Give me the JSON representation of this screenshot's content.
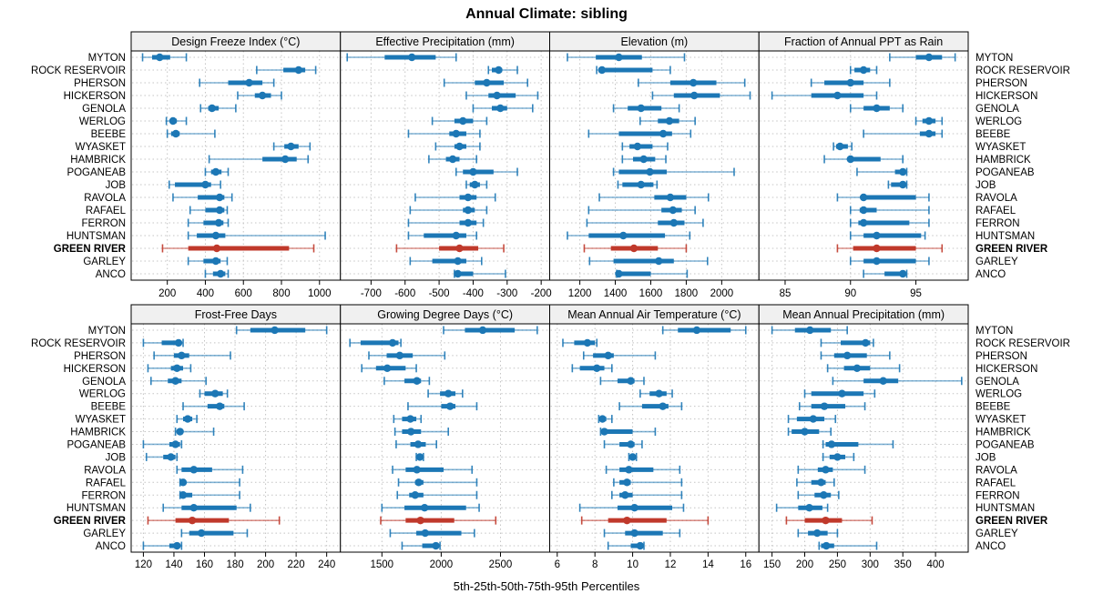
{
  "title": "Annual Climate: sibling",
  "xlabel": "5th-25th-50th-75th-95th Percentiles",
  "highlight_site": "GREEN RIVER",
  "colors": {
    "series": "#1C77B5",
    "highlight": "#C0392B",
    "strip_bg": "#F0F0F0",
    "grid": "#C4C4C4",
    "border": "#000000"
  },
  "sites": [
    "MYTON",
    "ROCK RESERVOIR",
    "PHERSON",
    "HICKERSON",
    "GENOLA",
    "WERLOG",
    "BEEBE",
    "WYASKET",
    "HAMBRICK",
    "POGANEAB",
    "JOB",
    "RAVOLA",
    "RAFAEL",
    "FERRON",
    "HUNTSMAN",
    "GREEN RIVER",
    "GARLEY",
    "ANCO"
  ],
  "chart_data": {
    "type": "dotplot",
    "subtype": "percentile-whisker-trellis",
    "layout": "2 rows x 4 columns, shared site axis, grid on (dotted)",
    "percentiles": [
      "5th",
      "25th",
      "50th",
      "75th",
      "95th"
    ],
    "panels": [
      {
        "title": "Design Freeze Index (°C)",
        "ticks": [
          200,
          400,
          600,
          800,
          1000
        ],
        "range": [
          10,
          1110
        ],
        "values": [
          [
            70,
            120,
            160,
            215,
            300
          ],
          [
            670,
            810,
            890,
            925,
            980
          ],
          [
            370,
            520,
            630,
            700,
            760
          ],
          [
            570,
            660,
            700,
            745,
            800
          ],
          [
            375,
            415,
            435,
            470,
            560
          ],
          [
            195,
            215,
            230,
            250,
            300
          ],
          [
            200,
            220,
            245,
            265,
            450
          ],
          [
            760,
            815,
            850,
            890,
            950
          ],
          [
            420,
            700,
            820,
            880,
            940
          ],
          [
            400,
            430,
            455,
            485,
            520
          ],
          [
            210,
            240,
            400,
            430,
            480
          ],
          [
            230,
            360,
            475,
            500,
            540
          ],
          [
            320,
            400,
            475,
            500,
            515
          ],
          [
            310,
            390,
            470,
            495,
            520
          ],
          [
            310,
            355,
            455,
            505,
            1030
          ],
          [
            175,
            310,
            460,
            840,
            970
          ],
          [
            310,
            390,
            455,
            480,
            515
          ],
          [
            400,
            440,
            480,
            505,
            520
          ]
        ]
      },
      {
        "title": "Effective Precipitation (mm)",
        "ticks": [
          -700,
          -600,
          -500,
          -400,
          -300,
          -200
        ],
        "range": [
          -790,
          -175
        ],
        "values": [
          [
            -770,
            -660,
            -580,
            -510,
            -450
          ],
          [
            -355,
            -345,
            -325,
            -315,
            -270
          ],
          [
            -485,
            -395,
            -360,
            -310,
            -240
          ],
          [
            -420,
            -355,
            -330,
            -275,
            -210
          ],
          [
            -400,
            -345,
            -320,
            -300,
            -225
          ],
          [
            -520,
            -455,
            -430,
            -400,
            -360
          ],
          [
            -590,
            -470,
            -450,
            -420,
            -380
          ],
          [
            -510,
            -455,
            -440,
            -420,
            -380
          ],
          [
            -530,
            -480,
            -460,
            -440,
            -390
          ],
          [
            -450,
            -430,
            -400,
            -340,
            -270
          ],
          [
            -420,
            -410,
            -395,
            -380,
            -360
          ],
          [
            -570,
            -440,
            -415,
            -390,
            -335
          ],
          [
            -585,
            -430,
            -415,
            -395,
            -360
          ],
          [
            -590,
            -440,
            -415,
            -390,
            -370
          ],
          [
            -590,
            -545,
            -450,
            -420,
            -390
          ],
          [
            -625,
            -500,
            -440,
            -385,
            -310
          ],
          [
            -585,
            -520,
            -445,
            -420,
            -375
          ],
          [
            -455,
            -450,
            -445,
            -400,
            -305
          ]
        ]
      },
      {
        "title": "Elevation (m)",
        "ticks": [
          1200,
          1400,
          1600,
          1800,
          2000
        ],
        "range": [
          1030,
          2210
        ],
        "values": [
          [
            1130,
            1290,
            1420,
            1550,
            1790
          ],
          [
            1295,
            1305,
            1325,
            1610,
            1710
          ],
          [
            1530,
            1710,
            1840,
            1970,
            2130
          ],
          [
            1610,
            1730,
            1845,
            1990,
            2160
          ],
          [
            1390,
            1470,
            1545,
            1660,
            1760
          ],
          [
            1540,
            1640,
            1705,
            1760,
            1850
          ],
          [
            1250,
            1420,
            1670,
            1720,
            1825
          ],
          [
            1440,
            1480,
            1525,
            1610,
            1695
          ],
          [
            1440,
            1500,
            1560,
            1625,
            1685
          ],
          [
            1390,
            1420,
            1595,
            1690,
            2070
          ],
          [
            1415,
            1440,
            1545,
            1615,
            1635
          ],
          [
            1310,
            1620,
            1710,
            1800,
            1925
          ],
          [
            1250,
            1660,
            1725,
            1775,
            1850
          ],
          [
            1240,
            1640,
            1730,
            1790,
            1895
          ],
          [
            1130,
            1250,
            1445,
            1680,
            1820
          ],
          [
            1225,
            1375,
            1505,
            1640,
            1800
          ],
          [
            1255,
            1390,
            1645,
            1730,
            1920
          ],
          [
            1408,
            1415,
            1420,
            1600,
            1805
          ]
        ]
      },
      {
        "title": "Fraction of Annual PPT as Rain",
        "ticks": [
          85,
          90,
          95
        ],
        "range": [
          83,
          99
        ],
        "values": [
          [
            93,
            95,
            96,
            97,
            98
          ],
          [
            90,
            90.3,
            91,
            91.5,
            92
          ],
          [
            87,
            88,
            90,
            91,
            93
          ],
          [
            84,
            87,
            89,
            91,
            92
          ],
          [
            90,
            91,
            92,
            93,
            94
          ],
          [
            95,
            95.5,
            96,
            96.5,
            97
          ],
          [
            91,
            95.3,
            96,
            96.5,
            97
          ],
          [
            88.7,
            88.9,
            89.2,
            89.8,
            90.1
          ],
          [
            88,
            89.8,
            90,
            92.3,
            94
          ],
          [
            90.5,
            93.4,
            94,
            94.2,
            94.3
          ],
          [
            92.9,
            93.1,
            94,
            94.2,
            94.3
          ],
          [
            89,
            90.8,
            91,
            95,
            96
          ],
          [
            90,
            90.7,
            91,
            92,
            96
          ],
          [
            90,
            90.6,
            91,
            94.5,
            96
          ],
          [
            90,
            91,
            92,
            95.4,
            95.7
          ],
          [
            89,
            90.2,
            92,
            95,
            97
          ],
          [
            90,
            91,
            92,
            95,
            96
          ],
          [
            91,
            92.6,
            94,
            94.2,
            94.3
          ]
        ]
      },
      {
        "title": "Frost-Free Days",
        "ticks": [
          120,
          140,
          160,
          180,
          200,
          220,
          240
        ],
        "range": [
          112,
          249
        ],
        "values": [
          [
            181,
            190,
            206,
            226,
            240
          ],
          [
            120,
            132,
            143,
            145,
            146
          ],
          [
            127,
            140,
            145,
            150,
            177
          ],
          [
            123,
            138,
            142,
            146,
            151
          ],
          [
            125,
            136,
            141,
            145,
            161
          ],
          [
            157,
            160,
            167,
            172,
            175
          ],
          [
            146,
            162,
            170,
            173,
            186
          ],
          [
            142,
            146,
            149,
            152,
            155
          ],
          [
            141,
            142,
            144,
            146,
            166
          ],
          [
            120,
            137,
            141,
            144,
            145
          ],
          [
            122,
            133,
            138,
            141,
            142
          ],
          [
            142,
            145,
            153,
            165,
            185
          ],
          [
            144,
            144.5,
            146,
            147,
            183
          ],
          [
            144,
            145,
            146,
            152,
            183
          ],
          [
            133,
            145,
            153,
            181,
            190
          ],
          [
            123,
            141,
            152,
            176,
            209
          ],
          [
            145,
            150,
            158,
            179,
            188
          ],
          [
            120,
            137,
            142,
            144,
            145
          ]
        ]
      },
      {
        "title": "Growing Degree Days (°C)",
        "ticks": [
          1500,
          2000,
          2500
        ],
        "range": [
          1150,
          2915
        ],
        "values": [
          [
            2020,
            2200,
            2350,
            2620,
            2810
          ],
          [
            1230,
            1320,
            1590,
            1640,
            1660
          ],
          [
            1390,
            1540,
            1650,
            1760,
            2030
          ],
          [
            1330,
            1450,
            1545,
            1700,
            1790
          ],
          [
            1520,
            1690,
            1795,
            1830,
            1900
          ],
          [
            1890,
            1990,
            2060,
            2120,
            2180
          ],
          [
            1720,
            2000,
            2075,
            2120,
            2300
          ],
          [
            1600,
            1670,
            1740,
            1790,
            1830
          ],
          [
            1610,
            1670,
            1745,
            1830,
            2060
          ],
          [
            1620,
            1740,
            1805,
            1870,
            1960
          ],
          [
            1790,
            1800,
            1820,
            1840,
            1850
          ],
          [
            1590,
            1700,
            1795,
            2020,
            2260
          ],
          [
            1640,
            1780,
            1810,
            1850,
            2300
          ],
          [
            1630,
            1730,
            1780,
            1850,
            2300
          ],
          [
            1500,
            1690,
            1860,
            2210,
            2320
          ],
          [
            1490,
            1700,
            1825,
            2110,
            2460
          ],
          [
            1570,
            1790,
            1865,
            2170,
            2280
          ],
          [
            1670,
            1840,
            1955,
            1980,
            1990
          ]
        ]
      },
      {
        "title": "Mean Annual Air Temperature (°C)",
        "ticks": [
          6,
          8,
          10,
          12,
          14,
          16
        ],
        "range": [
          5.6,
          16.7
        ],
        "values": [
          [
            11.6,
            12.4,
            13.4,
            15.2,
            16.0
          ],
          [
            6.3,
            6.9,
            7.6,
            8.0,
            8.1
          ],
          [
            7.4,
            7.9,
            8.7,
            9.0,
            11.2
          ],
          [
            6.8,
            7.2,
            8.1,
            8.5,
            8.9
          ],
          [
            8.3,
            9.2,
            9.9,
            10.1,
            10.6
          ],
          [
            10.4,
            10.9,
            11.4,
            11.8,
            12.1
          ],
          [
            9.3,
            10.5,
            11.6,
            11.9,
            12.6
          ],
          [
            8.2,
            8.3,
            8.4,
            8.6,
            8.9
          ],
          [
            8.3,
            8.4,
            8.5,
            10.0,
            11.2
          ],
          [
            8.5,
            9.3,
            9.9,
            10.1,
            10.5
          ],
          [
            9.8,
            9.9,
            10.0,
            10.15,
            10.2
          ],
          [
            8.6,
            9.3,
            9.8,
            11.1,
            12.5
          ],
          [
            9.0,
            9.3,
            9.7,
            9.9,
            12.6
          ],
          [
            8.9,
            9.3,
            9.6,
            10.0,
            12.6
          ],
          [
            7.2,
            9.2,
            10.1,
            12.1,
            12.7
          ],
          [
            7.3,
            8.7,
            9.7,
            11.8,
            14.0
          ],
          [
            8.5,
            9.6,
            10.1,
            11.6,
            12.5
          ],
          [
            8.7,
            9.9,
            10.4,
            10.5,
            10.6
          ]
        ]
      },
      {
        "title": "Mean Annual Precipitation (mm)",
        "ticks": [
          150,
          200,
          250,
          300,
          350,
          400
        ],
        "range": [
          130,
          450
        ],
        "values": [
          [
            150,
            185,
            208,
            240,
            265
          ],
          [
            225,
            255,
            293,
            300,
            305
          ],
          [
            225,
            245,
            265,
            295,
            330
          ],
          [
            235,
            260,
            280,
            300,
            345
          ],
          [
            243,
            290,
            320,
            343,
            440
          ],
          [
            200,
            210,
            257,
            290,
            307
          ],
          [
            192,
            210,
            230,
            262,
            292
          ],
          [
            175,
            188,
            213,
            230,
            247
          ],
          [
            175,
            180,
            200,
            222,
            240
          ],
          [
            228,
            232,
            241,
            282,
            335
          ],
          [
            228,
            238,
            250,
            262,
            275
          ],
          [
            190,
            220,
            232,
            243,
            292
          ],
          [
            188,
            210,
            225,
            232,
            245
          ],
          [
            190,
            215,
            229,
            240,
            252
          ],
          [
            157,
            190,
            207,
            227,
            235
          ],
          [
            172,
            200,
            232,
            257,
            303
          ],
          [
            190,
            205,
            219,
            235,
            250
          ],
          [
            222,
            225,
            233,
            245,
            310
          ]
        ]
      }
    ]
  }
}
